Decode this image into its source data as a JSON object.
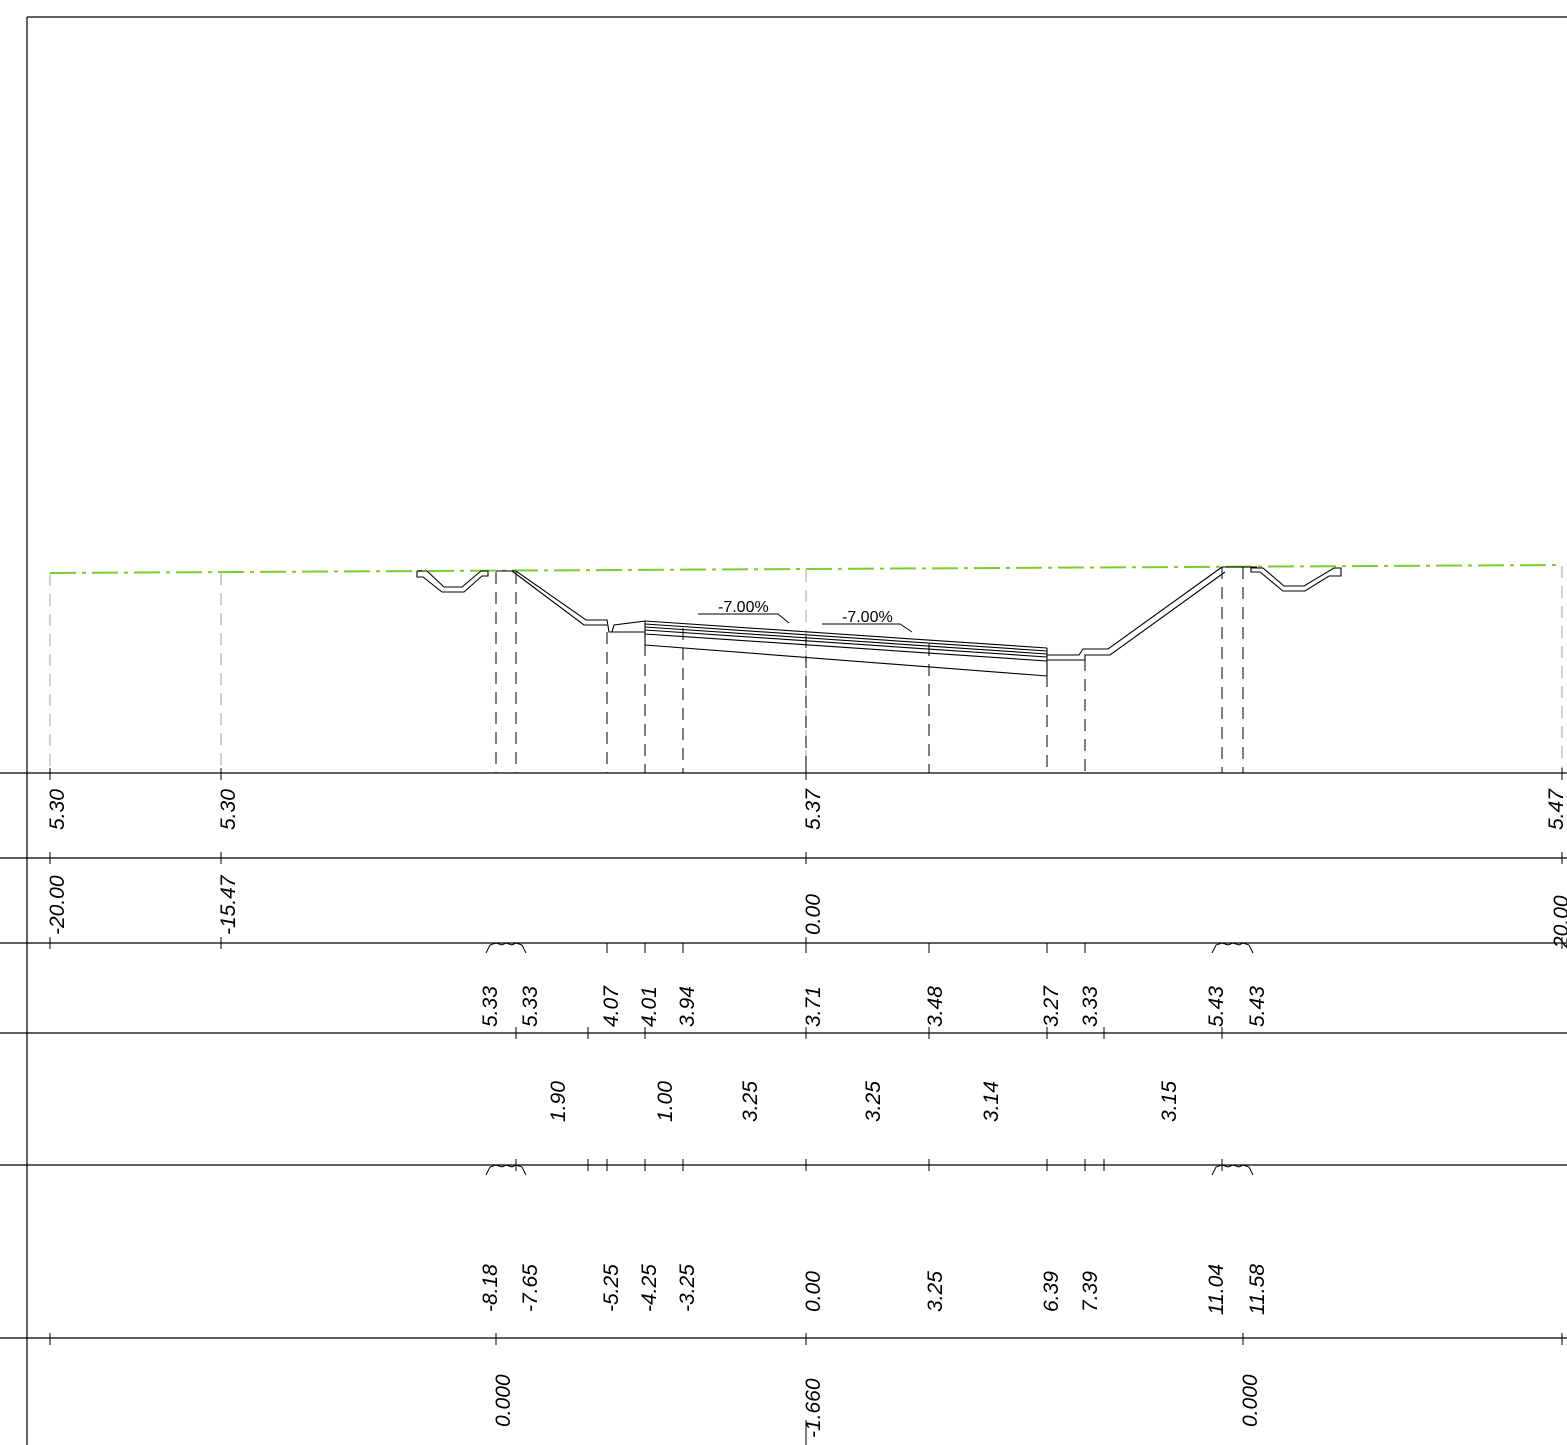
{
  "colors": {
    "ground_line": "#7ccf2a",
    "drawing": "#000000",
    "guide_gray": "#b0b0b0"
  },
  "slopes": [
    "-7.00%",
    "-7.00%"
  ],
  "rows": {
    "row1": [
      "5.30",
      "5.30",
      "5.37",
      "5.47"
    ],
    "row2": [
      "-20.00",
      "-15.47",
      "0.00",
      "20.00"
    ],
    "row3": [
      "5.33",
      "5.33",
      "4.07",
      "4.01",
      "3.94",
      "3.71",
      "3.48",
      "3.27",
      "3.33",
      "5.43",
      "5.43"
    ],
    "row4": [
      "1.90",
      "1.00",
      "3.25",
      "3.25",
      "3.14",
      "3.15"
    ],
    "row5": [
      "-8.18",
      "-7.65",
      "-5.25",
      "-4.25",
      "-3.25",
      "0.00",
      "3.25",
      "6.39",
      "7.39",
      "11.04",
      "11.58"
    ],
    "row6": [
      "0.000",
      "-1.660",
      "0.000"
    ]
  }
}
